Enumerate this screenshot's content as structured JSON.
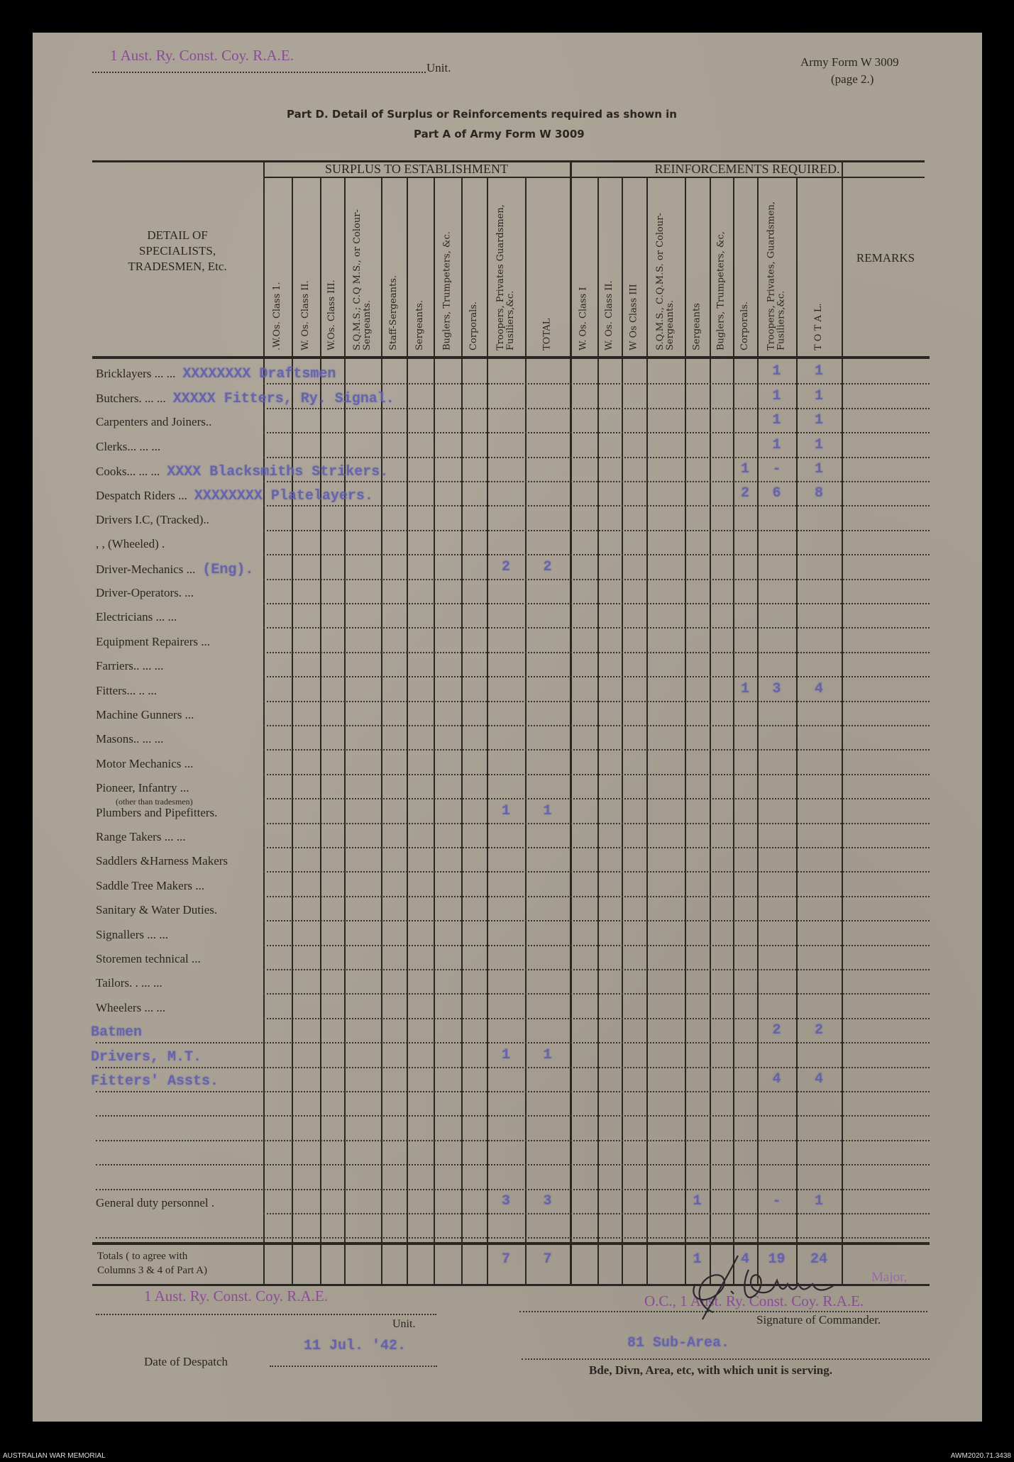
{
  "header": {
    "unit_stamp": "1 Aust. Ry. Const. Coy. R.A.E.",
    "unit_label": "Unit.",
    "form_id": "Army Form W 3009",
    "form_page": "(page 2.)",
    "title_line1": "Part D. Detail of Surplus or Reinforcements required as shown in",
    "title_line2": "Part A of Army Form W 3009"
  },
  "table": {
    "detail_header": [
      "DETAIL OF",
      "SPECIALISTS,",
      "TRADESMEN, Etc."
    ],
    "surplus_group": "SURPLUS TO ESTABLISHMENT",
    "reinf_group": "REINFORCEMENTS REQUIRED.",
    "remarks_header": "REMARKS",
    "surplus_columns": [
      ".W.Os. Class 1.",
      "W. Os. Class II.",
      "W.Os. Class III.",
      "S.Q.M.S.; C.Q M.S., or Colour-Sergeants.",
      "Staff-Sergeants.",
      "Sergeants.",
      "Buglers, Trumpeters, &c.",
      "Corporals.",
      "Troopers, Privates Guardsmen, Fusiliers,&c.",
      "TOTAL"
    ],
    "reinf_columns": [
      "W. Os. Class I",
      "W. Os. Class II.",
      "W Os Class III",
      "S.Q.M.S., C.Q.M.S. or Colour-Sergeants.",
      "Sergeants",
      "Buglers, Trumpeters, &c,",
      "Corporals.",
      "Troopers, Privates, Guardsmen, Fusiliers,&c.",
      "T O T A L."
    ],
    "rows": [
      {
        "label": "Bricklayers ... ...",
        "typed": "XXXXXXXX Draftsmen",
        "surplus": {},
        "reinf": {
          "7": "1",
          "8": "1"
        }
      },
      {
        "label": "Butchers. ... ...",
        "typed": "XXXXX Fitters, Ry. Signal.",
        "surplus": {},
        "reinf": {
          "7": "1",
          "8": "1"
        }
      },
      {
        "label": "Carpenters and Joiners..",
        "surplus": {},
        "reinf": {
          "7": "1",
          "8": "1"
        }
      },
      {
        "label": "Clerks... ... ...",
        "surplus": {},
        "reinf": {
          "7": "1",
          "8": "1"
        }
      },
      {
        "label": "Cooks... ... ...",
        "typed": "XXXX Blacksmiths Strikers.",
        "surplus": {},
        "reinf": {
          "6": "1",
          "7": "-",
          "8": "1"
        }
      },
      {
        "label": "Despatch Riders ...",
        "typed": "XXXXXXXX Platelayers.",
        "surplus": {},
        "reinf": {
          "6": "2",
          "7": "6",
          "8": "8"
        }
      },
      {
        "label": "Drivers I.C, (Tracked)..",
        "surplus": {},
        "reinf": {}
      },
      {
        "label": ",   , (Wheeled) .",
        "surplus": {},
        "reinf": {}
      },
      {
        "label": "Driver-Mechanics ...",
        "typed_suffix": "(Eng).",
        "surplus": {
          "8": "2",
          "9": "2"
        },
        "reinf": {}
      },
      {
        "label": "Driver-Operators. ...",
        "surplus": {},
        "reinf": {}
      },
      {
        "label": "Electricians ... ...",
        "surplus": {},
        "reinf": {}
      },
      {
        "label": "Equipment Repairers ...",
        "surplus": {},
        "reinf": {}
      },
      {
        "label": "Farriers.. ... ...",
        "surplus": {},
        "reinf": {}
      },
      {
        "label": "Fitters... .. ...",
        "surplus": {},
        "reinf": {
          "6": "1",
          "7": "3",
          "8": "4"
        }
      },
      {
        "label": "Machine Gunners ...",
        "surplus": {},
        "reinf": {}
      },
      {
        "label": "Masons.. ... ...",
        "surplus": {},
        "reinf": {}
      },
      {
        "label": "Motor Mechanics ...",
        "surplus": {},
        "reinf": {}
      },
      {
        "label": "Pioneer, Infantry ...",
        "sublabel": "(other than tradesmen)",
        "surplus": {},
        "reinf": {}
      },
      {
        "label": "Plumbers and Pipefitters.",
        "surplus": {
          "8": "1",
          "9": "1"
        },
        "reinf": {}
      },
      {
        "label": "Range Takers ... ...",
        "surplus": {},
        "reinf": {}
      },
      {
        "label": "Saddlers &Harness Makers",
        "surplus": {},
        "reinf": {}
      },
      {
        "label": "Saddle Tree Makers ...",
        "surplus": {},
        "reinf": {}
      },
      {
        "label": "Sanitary & Water Duties.",
        "surplus": {},
        "reinf": {}
      },
      {
        "label": "Signallers ... ...",
        "surplus": {},
        "reinf": {}
      },
      {
        "label": "Storemen technical ...",
        "surplus": {},
        "reinf": {}
      },
      {
        "label": "Tailors. . ... ...",
        "surplus": {},
        "reinf": {}
      },
      {
        "label": "Wheelers ... ...",
        "surplus": {},
        "reinf": {}
      },
      {
        "label": "",
        "typed": "Batmen",
        "surplus": {},
        "reinf": {
          "7": "2",
          "8": "2"
        }
      },
      {
        "label": "",
        "typed": "Drivers, M.T.",
        "surplus": {
          "8": "1",
          "9": "1"
        },
        "reinf": {}
      },
      {
        "label": "",
        "typed": "Fitters' Assts.",
        "surplus": {},
        "reinf": {
          "7": "4",
          "8": "4"
        }
      },
      {
        "label": "",
        "surplus": {},
        "reinf": {}
      },
      {
        "label": "",
        "surplus": {},
        "reinf": {}
      },
      {
        "label": "",
        "surplus": {},
        "reinf": {}
      },
      {
        "label": "",
        "surplus": {},
        "reinf": {}
      },
      {
        "label": "General duty personnel .",
        "surplus": {
          "8": "3",
          "9": "3"
        },
        "reinf": {
          "4": "1",
          "7": "-",
          "8": "1"
        }
      },
      {
        "label": "",
        "surplus": {},
        "reinf": {}
      }
    ],
    "totals": {
      "label_line1": "Totals ( to agree with",
      "label_line2": "Columns 3 & 4 of Part A)",
      "surplus": {
        "8": "7",
        "9": "7"
      },
      "reinf": {
        "4": "1",
        "6": "4",
        "7": "19",
        "8": "24"
      }
    }
  },
  "footer": {
    "unit_stamp": "1 Aust. Ry. Const. Coy. R.A.E.",
    "unit_label": "Unit.",
    "date_label": "Date of Despatch",
    "date_value": "11 Jul. '42.",
    "commander_rank": "Major,",
    "commander_stamp": "O.C., 1 Aust. Ry. Const. Coy. R.A.E.",
    "signature_label": "Signature of Commander.",
    "area_value": "81 Sub-Area.",
    "area_label": "Bde, Divn, Area, etc, with which unit is serving."
  },
  "archive": {
    "left": "AUSTRALIAN WAR MEMORIAL",
    "right": "AWM2020.71.3438"
  },
  "colors": {
    "paper": "#a8a093",
    "print_ink": "#2a2622",
    "typewriter_ink": "#5c5caf",
    "stamp_ink": "#8a4c98"
  }
}
